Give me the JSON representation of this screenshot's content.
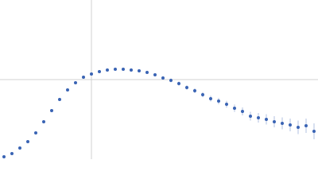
{
  "chart_data": {
    "type": "scatter",
    "x": [
      0.05,
      0.15,
      0.25,
      0.35,
      0.45,
      0.55,
      0.65,
      0.75,
      0.85,
      0.95,
      1.05,
      1.15,
      1.25,
      1.35,
      1.45,
      1.55,
      1.65,
      1.75,
      1.85,
      1.95,
      2.05,
      2.15,
      2.25,
      2.35,
      2.45,
      2.55,
      2.65,
      2.75,
      2.85,
      2.95,
      3.05,
      3.15,
      3.25,
      3.35,
      3.45,
      3.55,
      3.65,
      3.75,
      3.85,
      3.95
    ],
    "series": [
      {
        "color": "#3a64b4",
        "values": [
          0.03,
          0.07,
          0.14,
          0.22,
          0.33,
          0.47,
          0.61,
          0.75,
          0.87,
          0.96,
          1.03,
          1.07,
          1.1,
          1.12,
          1.13,
          1.13,
          1.12,
          1.11,
          1.09,
          1.06,
          1.02,
          0.99,
          0.95,
          0.9,
          0.86,
          0.81,
          0.76,
          0.73,
          0.69,
          0.64,
          0.6,
          0.54,
          0.52,
          0.5,
          0.47,
          0.45,
          0.43,
          0.4,
          0.42,
          0.35
        ],
        "errors": [
          0.005,
          0.005,
          0.006,
          0.006,
          0.007,
          0.007,
          0.008,
          0.008,
          0.009,
          0.01,
          0.01,
          0.01,
          0.012,
          0.012,
          0.013,
          0.014,
          0.015,
          0.016,
          0.018,
          0.02,
          0.022,
          0.024,
          0.026,
          0.028,
          0.03,
          0.033,
          0.036,
          0.04,
          0.043,
          0.046,
          0.05,
          0.055,
          0.06,
          0.065,
          0.07,
          0.075,
          0.08,
          0.085,
          0.09,
          0.1
        ]
      }
    ],
    "xlim": [
      0,
      4
    ],
    "ylim": [
      0,
      2
    ],
    "xticks": [
      1.15
    ],
    "yticks": [
      1
    ],
    "grid": true
  }
}
